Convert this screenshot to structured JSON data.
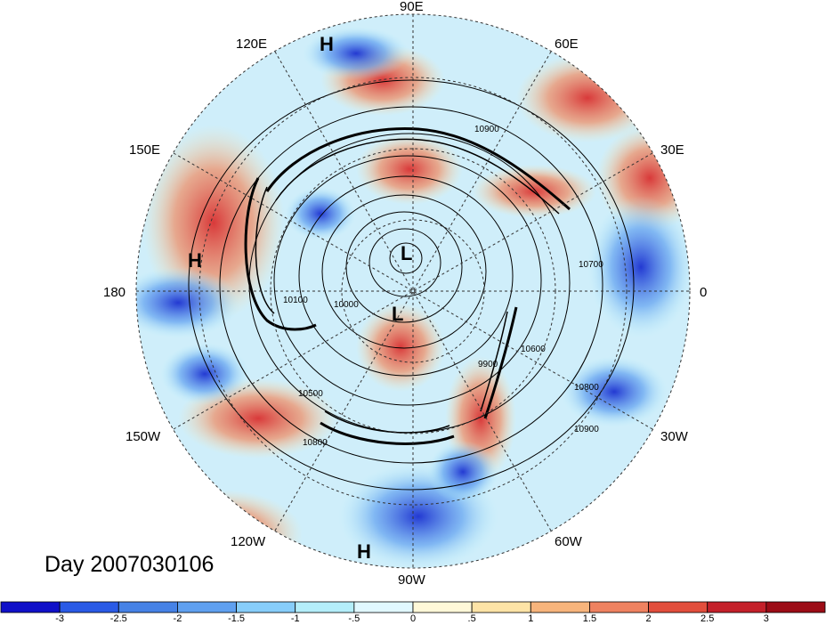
{
  "title": "Day 2007030106",
  "longitude_labels": [
    "90E",
    "60E",
    "30E",
    "0",
    "30W",
    "60W",
    "90W",
    "120W",
    "150W",
    "180",
    "150E",
    "120E"
  ],
  "pressure_centers": [
    {
      "label": "H"
    },
    {
      "label": "H"
    },
    {
      "label": "L"
    },
    {
      "label": "L"
    },
    {
      "label": "H"
    }
  ],
  "contour_labels": [
    "10900",
    "10800",
    "10700",
    "10600",
    "10500",
    "10100",
    "10000",
    "9900"
  ],
  "colorbar": {
    "colors": [
      "#1010c8",
      "#2a5ae6",
      "#4682e6",
      "#5fa0f0",
      "#87cdfa",
      "#b4eefa",
      "#e1f8ff",
      "#fff8d8",
      "#fde3a6",
      "#f7b47c",
      "#ef8260",
      "#e24e3c",
      "#c4202a",
      "#9c0c16"
    ],
    "tick_labels": [
      "-3",
      "-2.5",
      "-2",
      "-1.5",
      "-1",
      "-.5",
      "0",
      ".5",
      "1",
      "1.5",
      "2",
      "2.5",
      "3"
    ]
  }
}
